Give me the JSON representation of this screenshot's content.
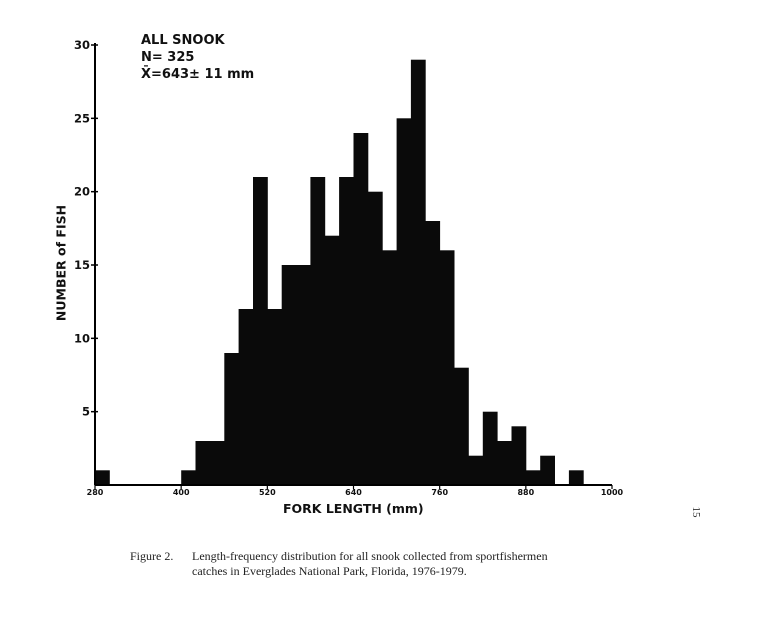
{
  "stats": {
    "title": "ALL SNOOK",
    "n": "N= 325",
    "mean": "X̄=643± 11 mm"
  },
  "caption": {
    "label": "Figure 2.",
    "line1": "Length-frequency distribution for all snook collected from sportfishermen",
    "line2": "catches in Everglades National Park, Florida, 1976-1979."
  },
  "page_number": "15",
  "chart_data": {
    "type": "bar",
    "title": "",
    "xlabel": "FORK LENGTH (mm)",
    "ylabel": "NUMBER of FISH",
    "xlim": [
      280,
      1000
    ],
    "ylim": [
      0,
      30
    ],
    "bin_width": 20,
    "grid": false,
    "x_ticks": [
      280,
      400,
      520,
      640,
      760,
      880,
      1000
    ],
    "y_ticks": [
      5,
      10,
      15,
      20,
      25,
      30
    ],
    "bins": [
      {
        "start": 280,
        "count": 1
      },
      {
        "start": 400,
        "count": 1
      },
      {
        "start": 420,
        "count": 3
      },
      {
        "start": 440,
        "count": 3
      },
      {
        "start": 460,
        "count": 9
      },
      {
        "start": 480,
        "count": 12
      },
      {
        "start": 500,
        "count": 21
      },
      {
        "start": 520,
        "count": 12
      },
      {
        "start": 540,
        "count": 15
      },
      {
        "start": 560,
        "count": 15
      },
      {
        "start": 580,
        "count": 21
      },
      {
        "start": 600,
        "count": 17
      },
      {
        "start": 620,
        "count": 21
      },
      {
        "start": 640,
        "count": 24
      },
      {
        "start": 660,
        "count": 20
      },
      {
        "start": 680,
        "count": 16
      },
      {
        "start": 700,
        "count": 25
      },
      {
        "start": 720,
        "count": 29
      },
      {
        "start": 740,
        "count": 18
      },
      {
        "start": 760,
        "count": 16
      },
      {
        "start": 780,
        "count": 8
      },
      {
        "start": 800,
        "count": 2
      },
      {
        "start": 820,
        "count": 5
      },
      {
        "start": 840,
        "count": 3
      },
      {
        "start": 860,
        "count": 4
      },
      {
        "start": 880,
        "count": 1
      },
      {
        "start": 900,
        "count": 2
      },
      {
        "start": 940,
        "count": 1
      }
    ]
  }
}
